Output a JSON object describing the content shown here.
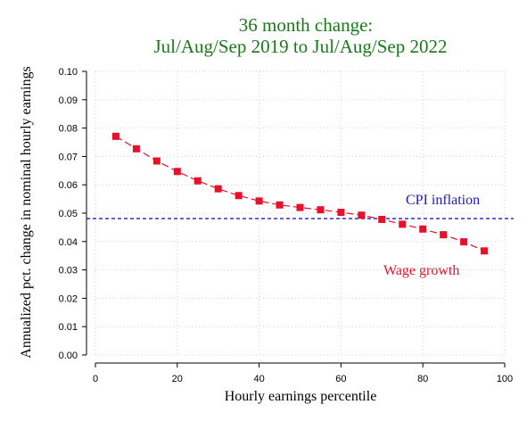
{
  "chart_data": {
    "type": "line",
    "title_line1": "36 month change:",
    "title_line2": "Jul/Aug/Sep 2019 to Jul/Aug/Sep 2022",
    "xlabel": "Hourly earnings percentile",
    "ylabel": "Annualized pct. change in nominal hourly earnings",
    "xlim": [
      0,
      100
    ],
    "ylim": [
      0,
      0.1
    ],
    "x_ticks": [
      0,
      20,
      40,
      60,
      80,
      100
    ],
    "x_tick_labels": [
      "0",
      "20",
      "40",
      "60",
      "80",
      "100"
    ],
    "y_ticks": [
      0,
      0.01,
      0.02,
      0.03,
      0.04,
      0.05,
      0.06,
      0.07,
      0.08,
      0.09,
      0.1
    ],
    "y_tick_labels": [
      "0.00",
      "0.01",
      "0.02",
      "0.03",
      "0.04",
      "0.05",
      "0.06",
      "0.07",
      "0.08",
      "0.09",
      "0.10"
    ],
    "grid": true,
    "series": [
      {
        "name": "Wage growth",
        "color": "#e8102a",
        "x": [
          5,
          10,
          15,
          20,
          25,
          30,
          35,
          40,
          45,
          50,
          55,
          60,
          65,
          70,
          75,
          80,
          85,
          90,
          95
        ],
        "values": [
          0.0771,
          0.0727,
          0.0684,
          0.0647,
          0.0614,
          0.0586,
          0.0562,
          0.0543,
          0.0529,
          0.052,
          0.0512,
          0.0503,
          0.0493,
          0.0478,
          0.0461,
          0.0444,
          0.0424,
          0.0399,
          0.0367
        ]
      }
    ],
    "reference_lines": [
      {
        "name": "CPI inflation",
        "value": 0.0481,
        "color": "#1a1acc"
      }
    ],
    "annotations": {
      "cpi_label": "CPI inflation",
      "wage_label": "Wage growth"
    },
    "colors": {
      "title": "#1a7a1a",
      "wage": "#e8102a",
      "cpi": "#1a1acc"
    }
  }
}
